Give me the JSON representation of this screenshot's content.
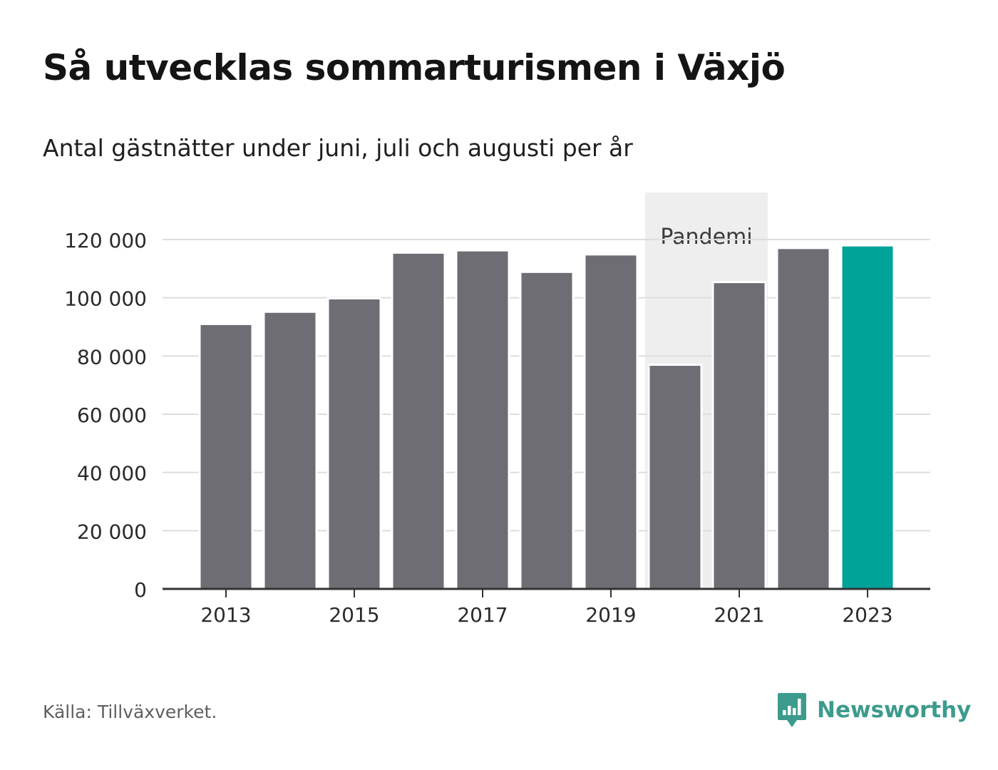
{
  "title": "Så utvecklas sommarturismen i Växjö",
  "subtitle": "Antal gästnätter under juni, juli och augusti per år",
  "source": "Källa: Tillväxverket.",
  "brand": {
    "name": "Newsworthy",
    "logo_icon": "bar-chart-speech-bubble-icon",
    "color": "#3d9b8d"
  },
  "colors": {
    "bar": "#6e6d74",
    "highlight": "#00a398",
    "band": "#eeeeee",
    "grid": "#dddddd",
    "axis": "#333333"
  },
  "chart_data": {
    "type": "bar",
    "title": "Så utvecklas sommarturismen i Växjö",
    "subtitle": "Antal gästnätter under juni, juli och augusti per år",
    "xlabel": "",
    "ylabel": "",
    "categories": [
      "2013",
      "2014",
      "2015",
      "2016",
      "2017",
      "2018",
      "2019",
      "2020",
      "2021",
      "2022",
      "2023"
    ],
    "values": [
      91000,
      95200,
      99800,
      115500,
      116300,
      108900,
      114900,
      77000,
      105400,
      117100,
      118000
    ],
    "highlight_category": "2023",
    "ylim": [
      0,
      130000
    ],
    "yticks": [
      0,
      20000,
      40000,
      60000,
      80000,
      100000,
      120000
    ],
    "ytick_labels": [
      "0",
      "20 000",
      "40 000",
      "60 000",
      "80 000",
      "100 000",
      "120 000"
    ],
    "xtick_labels": [
      "2013",
      "2015",
      "2017",
      "2019",
      "2021",
      "2023"
    ],
    "annotation": {
      "label": "Pandemi",
      "category": "2020"
    },
    "grid": true,
    "legend": "none"
  }
}
